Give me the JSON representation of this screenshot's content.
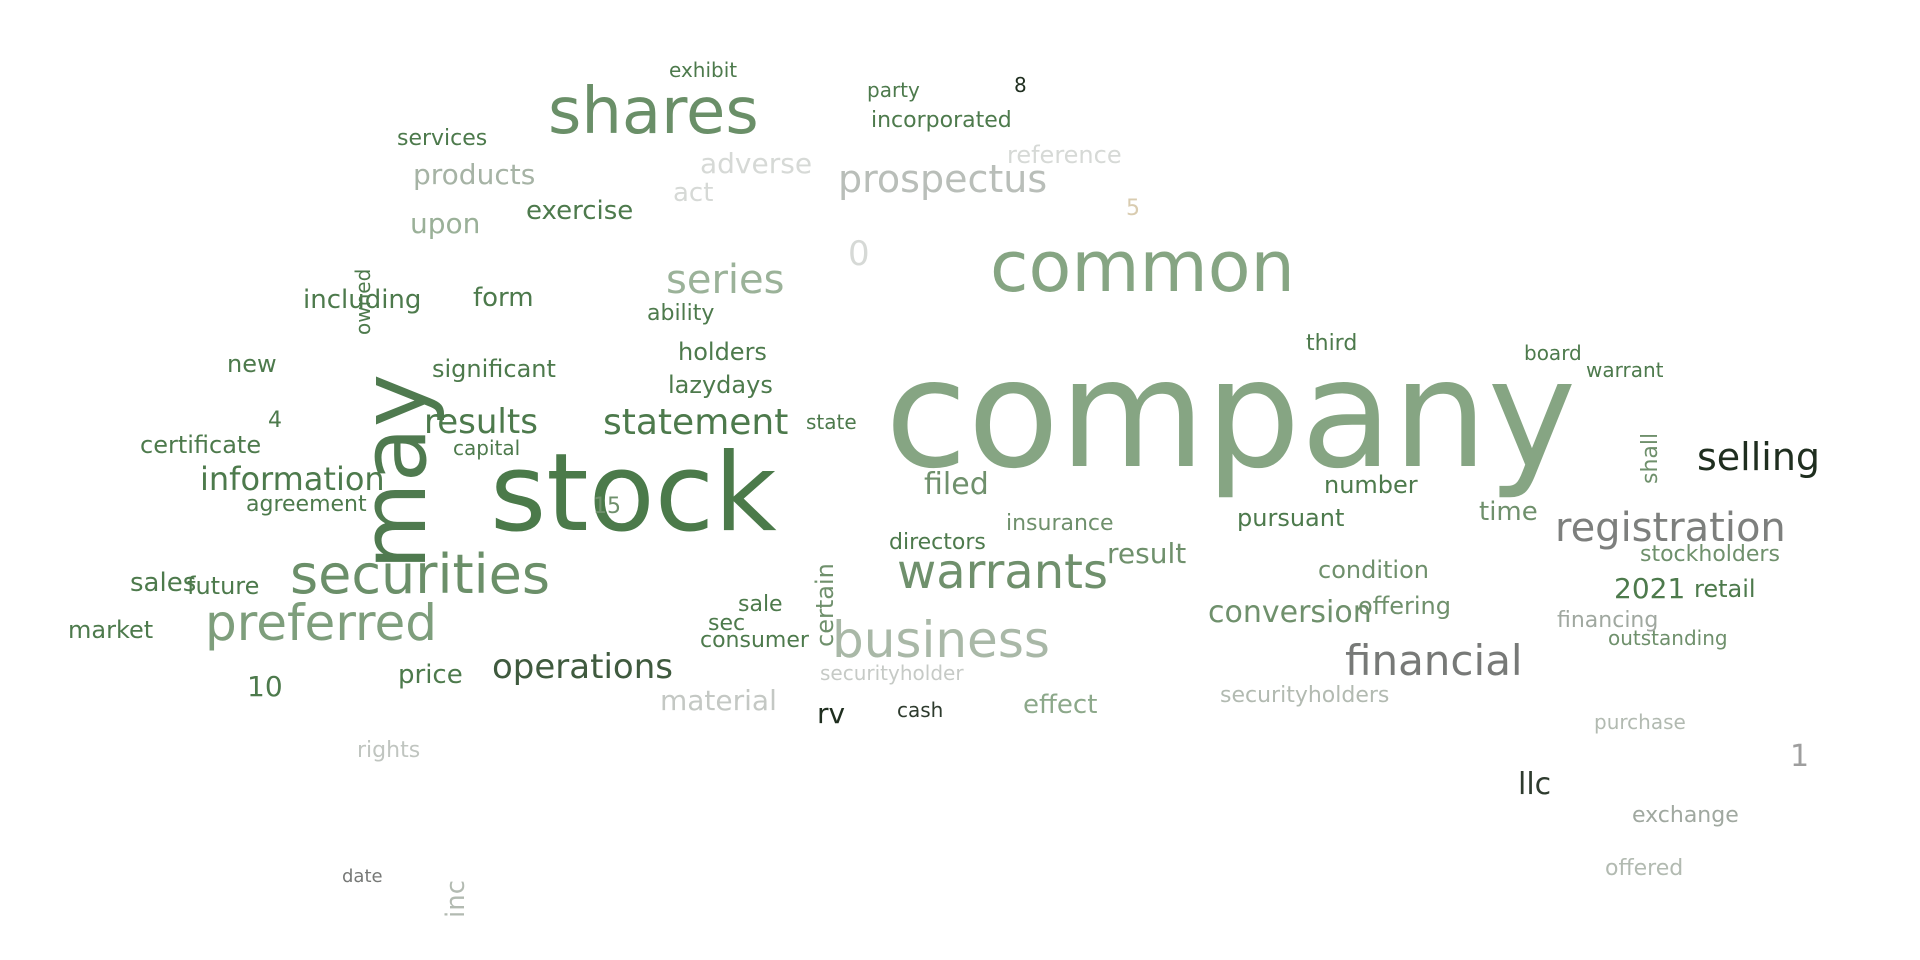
{
  "wordcloud": {
    "words": [
      {
        "text": "company",
        "color": "#86a583"
      },
      {
        "text": "stock",
        "color": "#4b7a4a"
      },
      {
        "text": "common",
        "color": "#86a583"
      },
      {
        "text": "may",
        "color": "#4f7a4f"
      },
      {
        "text": "shares",
        "color": "#6a8f68"
      },
      {
        "text": "securities",
        "color": "#6b8f69"
      },
      {
        "text": "warrants",
        "color": "#6f906c"
      },
      {
        "text": "business",
        "color": "#a9b8a7"
      },
      {
        "text": "preferred",
        "color": "#7e9e7c"
      },
      {
        "text": "registration",
        "color": "#7d7f7d"
      },
      {
        "text": "financial",
        "color": "#777977"
      },
      {
        "text": "selling",
        "color": "#1f2e1f"
      },
      {
        "text": "prospectus",
        "color": "#b9beb9"
      },
      {
        "text": "statement",
        "color": "#4d7a4c"
      },
      {
        "text": "operations",
        "color": "#3f5a3e"
      },
      {
        "text": "information",
        "color": "#4d7a4c"
      },
      {
        "text": "results",
        "color": "#4d7a4c"
      },
      {
        "text": "series",
        "color": "#9bb299"
      },
      {
        "text": "conversion",
        "color": "#6f906c"
      },
      {
        "text": "securityholders",
        "color": "#b2bab1"
      },
      {
        "text": "material",
        "color": "#c4c8c4"
      },
      {
        "text": "products",
        "color": "#a6b3a5"
      },
      {
        "text": "including",
        "color": "#4d7a4c"
      },
      {
        "text": "effect",
        "color": "#8ca88a"
      },
      {
        "text": "securityholder",
        "color": "#c6cac6"
      },
      {
        "text": "condition",
        "color": "#6f906c"
      },
      {
        "text": "offering",
        "color": "#6f906c"
      },
      {
        "text": "pursuant",
        "color": "#4d7a4c"
      },
      {
        "text": "time",
        "color": "#6f906c"
      },
      {
        "text": "result",
        "color": "#6f906c"
      },
      {
        "text": "exchange",
        "color": "#a0a8a0"
      },
      {
        "text": "outstanding",
        "color": "#6f906c"
      },
      {
        "text": "adverse",
        "color": "#d6d9d6"
      },
      {
        "text": "upon",
        "color": "#9ab098"
      },
      {
        "text": "incorporated",
        "color": "#4d7a4c"
      },
      {
        "text": "exercise",
        "color": "#4d7a4c"
      },
      {
        "text": "reference",
        "color": "#d6d9d6"
      },
      {
        "text": "sales",
        "color": "#4d7a4c"
      },
      {
        "text": "future",
        "color": "#4d7a4c"
      },
      {
        "text": "market",
        "color": "#4d7a4c"
      },
      {
        "text": "price",
        "color": "#4d7a4c"
      },
      {
        "text": "certificate",
        "color": "#4d7a4c"
      },
      {
        "text": "agreement",
        "color": "#4d7a4c"
      },
      {
        "text": "significant",
        "color": "#4d7a4c"
      },
      {
        "text": "holders",
        "color": "#4d7a4c"
      },
      {
        "text": "lazydays",
        "color": "#4d7a4c"
      },
      {
        "text": "ability",
        "color": "#4d7a4c"
      },
      {
        "text": "filed",
        "color": "#6f906c"
      },
      {
        "text": "directors",
        "color": "#4d7a4c"
      },
      {
        "text": "insurance",
        "color": "#6f906c"
      },
      {
        "text": "financing",
        "color": "#a0a8a0"
      },
      {
        "text": "stockholders",
        "color": "#6f906c"
      },
      {
        "text": "number",
        "color": "#4d7a4c"
      },
      {
        "text": "retail",
        "color": "#4d7a4c"
      },
      {
        "text": "2021",
        "color": "#4d7a4c"
      },
      {
        "text": "llc",
        "color": "#2e3b2e"
      },
      {
        "text": "rv",
        "color": "#1f2e1f"
      },
      {
        "text": "cash",
        "color": "#2e3b2e"
      },
      {
        "text": "act",
        "color": "#d6d9d6"
      },
      {
        "text": "form",
        "color": "#4d7a4c"
      },
      {
        "text": "owned",
        "color": "#4d7a4c"
      },
      {
        "text": "services",
        "color": "#4d7a4c"
      },
      {
        "text": "new",
        "color": "#4d7a4c"
      },
      {
        "text": "capital",
        "color": "#4d7a4c"
      },
      {
        "text": "sale",
        "color": "#4d7a4c"
      },
      {
        "text": "sec",
        "color": "#4d7a4c"
      },
      {
        "text": "consumer",
        "color": "#4d7a4c"
      },
      {
        "text": "rights",
        "color": "#c0c5c0"
      },
      {
        "text": "offered",
        "color": "#b2bab1"
      },
      {
        "text": "purchase",
        "color": "#b2bab1"
      },
      {
        "text": "party",
        "color": "#4d7a4c"
      },
      {
        "text": "exhibit",
        "color": "#4d7a4c"
      },
      {
        "text": "third",
        "color": "#4d7a4c"
      },
      {
        "text": "warrant",
        "color": "#4d7a4c"
      },
      {
        "text": "board",
        "color": "#4d7a4c"
      },
      {
        "text": "certain",
        "color": "#6f906c"
      },
      {
        "text": "state",
        "color": "#4d7a4c"
      },
      {
        "text": "date",
        "color": "#777977"
      },
      {
        "text": "inc",
        "color": "#b2bab1"
      },
      {
        "text": "shall",
        "color": "#6f906c"
      },
      {
        "text": "0",
        "color": "#d6d9d6"
      },
      {
        "text": "1",
        "color": "#9e9e9e"
      },
      {
        "text": "10",
        "color": "#4d7a4c"
      },
      {
        "text": "15",
        "color": "#6f906c"
      },
      {
        "text": "8",
        "color": "#1f2e1f"
      },
      {
        "text": "4",
        "color": "#4d7a4c"
      },
      {
        "text": "5",
        "color": "#d9ccb0"
      }
    ]
  }
}
